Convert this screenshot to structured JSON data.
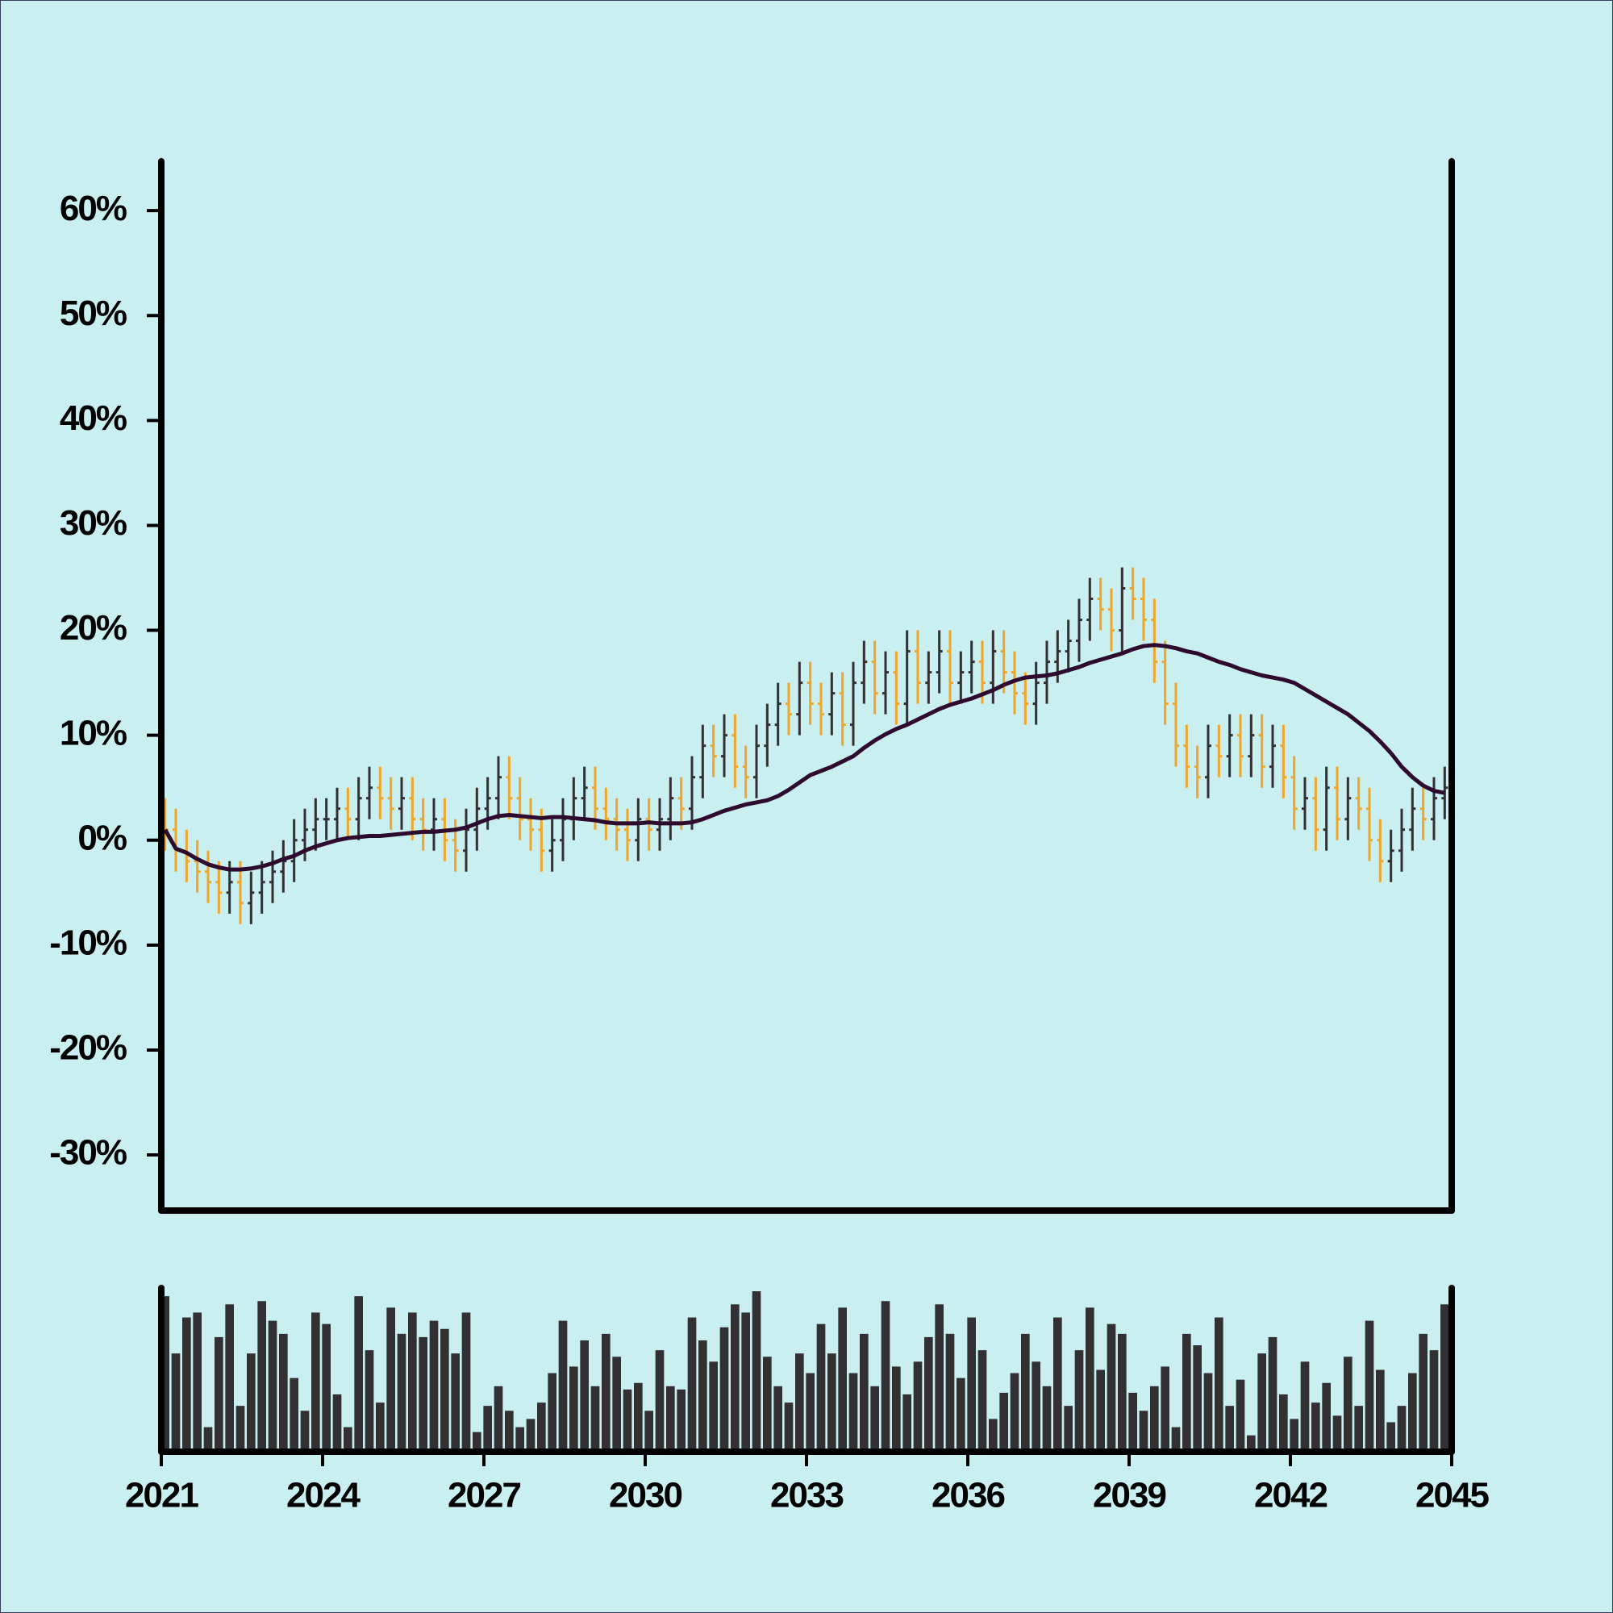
{
  "chart_data": {
    "type": "ohlc",
    "x": [
      2021,
      2021.2,
      2021.4,
      2021.6,
      2021.8,
      2022,
      2022.2,
      2022.4,
      2022.6,
      2022.8,
      2023,
      2023.2,
      2023.4,
      2023.6,
      2023.8,
      2024,
      2024.2,
      2024.4,
      2024.6,
      2024.8,
      2025,
      2025.2,
      2025.4,
      2025.6,
      2025.8,
      2026,
      2026.2,
      2026.4,
      2026.6,
      2026.8,
      2027,
      2027.2,
      2027.4,
      2027.6,
      2027.8,
      2028,
      2028.2,
      2028.4,
      2028.6,
      2028.8,
      2029,
      2029.2,
      2029.4,
      2029.6,
      2029.8,
      2030,
      2030.2,
      2030.4,
      2030.6,
      2030.8,
      2031,
      2031.2,
      2031.4,
      2031.6,
      2031.8,
      2032,
      2032.2,
      2032.4,
      2032.6,
      2032.8,
      2033,
      2033.2,
      2033.4,
      2033.6,
      2033.8,
      2034,
      2034.2,
      2034.4,
      2034.6,
      2034.8,
      2035,
      2035.2,
      2035.4,
      2035.6,
      2035.8,
      2036,
      2036.2,
      2036.4,
      2036.6,
      2036.8,
      2037,
      2037.2,
      2037.4,
      2037.6,
      2037.8,
      2038,
      2038.2,
      2038.4,
      2038.6,
      2038.8,
      2039,
      2039.2,
      2039.4,
      2039.6,
      2039.8,
      2040,
      2040.2,
      2040.4,
      2040.6,
      2040.8,
      2041,
      2041.2,
      2041.4,
      2041.6,
      2041.8,
      2042,
      2042.2,
      2042.4,
      2042.6,
      2042.8,
      2043,
      2043.2,
      2043.4,
      2043.6,
      2043.8,
      2044,
      2044.2,
      2044.4,
      2044.6,
      2044.8
    ],
    "open": [
      2,
      1,
      -1,
      -2,
      -3,
      -4,
      -5,
      -4,
      -6,
      -5,
      -4,
      -3,
      -2,
      0,
      1,
      2,
      2,
      3,
      2,
      4,
      5,
      4,
      3,
      4,
      2,
      1,
      2,
      0,
      -1,
      1,
      3,
      4,
      6,
      4,
      2,
      1,
      -1,
      0,
      2,
      4,
      5,
      3,
      2,
      1,
      0,
      2,
      1,
      2,
      4,
      3,
      6,
      9,
      8,
      10,
      7,
      6,
      9,
      11,
      13,
      12,
      15,
      13,
      12,
      14,
      11,
      15,
      17,
      14,
      16,
      13,
      18,
      15,
      16,
      18,
      15,
      16,
      17,
      15,
      18,
      16,
      14,
      13,
      15,
      17,
      18,
      19,
      21,
      23,
      22,
      20,
      24,
      23,
      21,
      17,
      13,
      9,
      7,
      6,
      9,
      8,
      10,
      8,
      10,
      7,
      9,
      6,
      3,
      4,
      1,
      5,
      2,
      4,
      3,
      0,
      -2,
      -1,
      1,
      3,
      2,
      4
    ],
    "high": [
      4,
      3,
      1,
      0,
      -1,
      -2,
      -2,
      -2,
      -3,
      -2,
      -1,
      0,
      2,
      3,
      4,
      4,
      5,
      5,
      6,
      7,
      7,
      6,
      6,
      6,
      4,
      4,
      4,
      2,
      3,
      5,
      6,
      8,
      8,
      6,
      4,
      3,
      2,
      4,
      6,
      7,
      7,
      5,
      4,
      3,
      4,
      4,
      4,
      6,
      6,
      8,
      11,
      11,
      12,
      12,
      9,
      11,
      13,
      15,
      15,
      17,
      17,
      15,
      16,
      16,
      17,
      19,
      19,
      18,
      18,
      20,
      20,
      18,
      20,
      20,
      18,
      19,
      19,
      20,
      20,
      18,
      16,
      17,
      19,
      20,
      21,
      23,
      25,
      25,
      24,
      26,
      26,
      25,
      23,
      19,
      15,
      11,
      9,
      11,
      11,
      12,
      12,
      12,
      12,
      11,
      11,
      8,
      6,
      6,
      7,
      7,
      6,
      6,
      5,
      2,
      1,
      3,
      5,
      5,
      6,
      7
    ],
    "low": [
      -1,
      -3,
      -4,
      -5,
      -6,
      -7,
      -7,
      -8,
      -8,
      -7,
      -6,
      -5,
      -4,
      -2,
      -1,
      0,
      0,
      0,
      0,
      2,
      2,
      1,
      1,
      0,
      -1,
      -1,
      -2,
      -3,
      -3,
      -1,
      1,
      2,
      2,
      0,
      -1,
      -3,
      -3,
      -2,
      0,
      2,
      1,
      0,
      -1,
      -2,
      -2,
      -1,
      -1,
      0,
      1,
      1,
      4,
      6,
      6,
      5,
      4,
      4,
      7,
      9,
      10,
      10,
      11,
      10,
      10,
      9,
      9,
      13,
      12,
      12,
      11,
      11,
      13,
      13,
      14,
      13,
      13,
      14,
      13,
      13,
      14,
      12,
      11,
      11,
      13,
      15,
      16,
      17,
      19,
      20,
      18,
      18,
      21,
      19,
      15,
      11,
      7,
      5,
      4,
      4,
      6,
      6,
      6,
      6,
      5,
      5,
      4,
      1,
      1,
      -1,
      -1,
      0,
      0,
      1,
      -2,
      -4,
      -4,
      -3,
      -1,
      0,
      0,
      2
    ],
    "close": [
      1,
      -1,
      -2,
      -3,
      -4,
      -5,
      -4,
      -6,
      -5,
      -4,
      -3,
      -2,
      0,
      1,
      2,
      2,
      3,
      2,
      4,
      5,
      4,
      3,
      4,
      2,
      1,
      2,
      0,
      -1,
      1,
      3,
      4,
      6,
      4,
      2,
      1,
      -1,
      0,
      2,
      4,
      5,
      3,
      2,
      1,
      0,
      2,
      1,
      2,
      4,
      3,
      6,
      9,
      8,
      10,
      7,
      6,
      9,
      11,
      13,
      12,
      15,
      13,
      12,
      14,
      11,
      15,
      17,
      14,
      16,
      13,
      18,
      15,
      16,
      18,
      15,
      16,
      17,
      15,
      18,
      16,
      14,
      13,
      15,
      17,
      18,
      19,
      21,
      23,
      22,
      20,
      24,
      23,
      21,
      17,
      13,
      9,
      7,
      6,
      9,
      8,
      10,
      8,
      10,
      7,
      9,
      6,
      3,
      4,
      1,
      5,
      2,
      4,
      3,
      0,
      -2,
      -1,
      1,
      3,
      2,
      4,
      5
    ],
    "up_color": "#333033",
    "down_color": "#f0a62a",
    "ma": {
      "color": "#2e0a2e",
      "values": [
        1.0,
        -0.8,
        -1.2,
        -1.8,
        -2.3,
        -2.6,
        -2.8,
        -2.8,
        -2.7,
        -2.5,
        -2.2,
        -1.8,
        -1.5,
        -1.0,
        -0.6,
        -0.3,
        0.0,
        0.2,
        0.3,
        0.4,
        0.4,
        0.5,
        0.6,
        0.7,
        0.8,
        0.8,
        0.9,
        1.0,
        1.2,
        1.6,
        2.0,
        2.3,
        2.4,
        2.3,
        2.2,
        2.1,
        2.2,
        2.2,
        2.1,
        2.0,
        1.9,
        1.7,
        1.6,
        1.6,
        1.6,
        1.7,
        1.6,
        1.6,
        1.6,
        1.7,
        2.0,
        2.4,
        2.8,
        3.1,
        3.4,
        3.6,
        3.8,
        4.2,
        4.8,
        5.5,
        6.2,
        6.6,
        7.0,
        7.5,
        8.0,
        8.8,
        9.5,
        10.1,
        10.6,
        11.0,
        11.5,
        12.0,
        12.5,
        12.9,
        13.2,
        13.5,
        13.9,
        14.3,
        14.8,
        15.2,
        15.5,
        15.6,
        15.7,
        15.9,
        16.2,
        16.5,
        16.9,
        17.2,
        17.5,
        17.8,
        18.2,
        18.5,
        18.6,
        18.5,
        18.3,
        18.0,
        17.8,
        17.4,
        17.0,
        16.7,
        16.3,
        16.0,
        15.7,
        15.5,
        15.3,
        15.0,
        14.4,
        13.8,
        13.2,
        12.6,
        12.0,
        11.2,
        10.4,
        9.4,
        8.3,
        7.0,
        6.0,
        5.2,
        4.7,
        4.5
      ]
    },
    "ylim": [
      -35.3,
      64.7
    ],
    "yticks": [
      {
        "value": -30,
        "label": "-30%"
      },
      {
        "value": -20,
        "label": "-20%"
      },
      {
        "value": -10,
        "label": "-10%"
      },
      {
        "value": 0,
        "label": "0%"
      },
      {
        "value": 10,
        "label": "10%"
      },
      {
        "value": 20,
        "label": "20%"
      },
      {
        "value": 30,
        "label": "30%"
      },
      {
        "value": 40,
        "label": "40%"
      },
      {
        "value": 50,
        "label": "50%"
      },
      {
        "value": 60,
        "label": "60%"
      }
    ],
    "xlim": [
      2021,
      2045
    ],
    "xticks": [
      2021,
      2024,
      2027,
      2030,
      2033,
      2036,
      2039,
      2042,
      2045
    ],
    "volume": {
      "color": "#333033",
      "ylim": [
        0,
        100
      ],
      "values": [
        95,
        60,
        82,
        85,
        15,
        70,
        90,
        28,
        60,
        92,
        80,
        72,
        45,
        25,
        85,
        78,
        35,
        15,
        95,
        62,
        30,
        88,
        72,
        85,
        70,
        80,
        75,
        60,
        85,
        12,
        28,
        40,
        25,
        15,
        20,
        30,
        48,
        80,
        52,
        68,
        40,
        72,
        58,
        38,
        42,
        25,
        62,
        40,
        38,
        82,
        68,
        55,
        76,
        90,
        85,
        98,
        58,
        40,
        30,
        60,
        48,
        78,
        60,
        88,
        48,
        72,
        40,
        92,
        52,
        35,
        55,
        70,
        90,
        72,
        45,
        82,
        62,
        20,
        36,
        48,
        72,
        55,
        40,
        82,
        28,
        62,
        88,
        50,
        78,
        72,
        36,
        25,
        40,
        52,
        15,
        72,
        65,
        48,
        82,
        28,
        44,
        10,
        60,
        70,
        35,
        20,
        55,
        30,
        42,
        22,
        58,
        28,
        80,
        50,
        18,
        28,
        48,
        72,
        62,
        90
      ]
    }
  }
}
